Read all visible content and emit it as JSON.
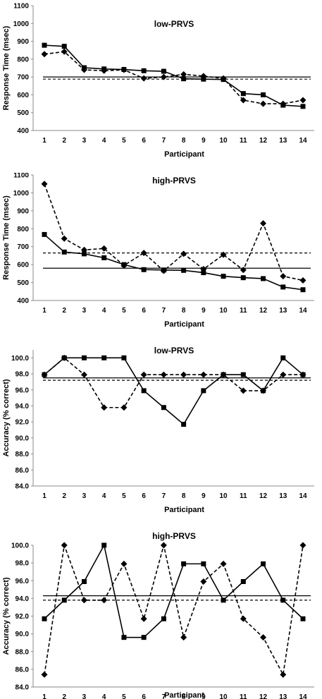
{
  "chart_data": [
    {
      "type": "line",
      "title": "low-PRVS",
      "xlabel": "Participant",
      "ylabel": "Response Time (msec)",
      "categories": [
        "1",
        "2",
        "3",
        "4",
        "5",
        "6",
        "7",
        "8",
        "9",
        "10",
        "11",
        "12",
        "13",
        "14"
      ],
      "ylim": [
        400,
        1100
      ],
      "yticks": [
        "400",
        "500",
        "600",
        "700",
        "800",
        "900",
        "1000",
        "1100"
      ],
      "grid": false,
      "series": [
        {
          "style": "solid",
          "marker": "square",
          "values": [
            878,
            872,
            752,
            745,
            742,
            735,
            732,
            690,
            688,
            686,
            607,
            600,
            542,
            535
          ]
        },
        {
          "style": "dashed",
          "marker": "diamond",
          "values": [
            828,
            842,
            740,
            735,
            740,
            692,
            700,
            715,
            705,
            692,
            570,
            550,
            550,
            570
          ]
        }
      ],
      "reference_lines": [
        {
          "style": "solid",
          "value": 700
        },
        {
          "style": "dashed",
          "value": 688
        }
      ]
    },
    {
      "type": "line",
      "title": "high-PRVS",
      "xlabel": "Participant",
      "ylabel": "Response Time (msec)",
      "categories": [
        "1",
        "2",
        "3",
        "4",
        "5",
        "6",
        "7",
        "8",
        "9",
        "10",
        "11",
        "12",
        "13",
        "14"
      ],
      "ylim": [
        400,
        1100
      ],
      "yticks": [
        "400",
        "500",
        "600",
        "700",
        "800",
        "900",
        "1000",
        "1100"
      ],
      "grid": false,
      "series": [
        {
          "style": "solid",
          "marker": "square",
          "values": [
            768,
            670,
            660,
            638,
            600,
            572,
            570,
            568,
            555,
            535,
            527,
            522,
            475,
            460
          ]
        },
        {
          "style": "dashed",
          "marker": "diamond",
          "values": [
            1050,
            745,
            682,
            690,
            595,
            665,
            565,
            660,
            575,
            655,
            570,
            830,
            535,
            512
          ]
        }
      ],
      "reference_lines": [
        {
          "style": "solid",
          "value": 580
        },
        {
          "style": "dashed",
          "value": 665
        }
      ]
    },
    {
      "type": "line",
      "title": "low-PRVS",
      "xlabel": "Participant",
      "ylabel": "Accuracy (% correct)",
      "categories": [
        "1",
        "2",
        "3",
        "4",
        "5",
        "6",
        "7",
        "8",
        "9",
        "10",
        "11",
        "12",
        "13",
        "14"
      ],
      "ylim": [
        84,
        101
      ],
      "yticks": [
        "84.0",
        "86.0",
        "88.0",
        "90.0",
        "92.0",
        "94.0",
        "96.0",
        "98.0",
        "100.0"
      ],
      "grid": false,
      "series": [
        {
          "style": "solid",
          "marker": "square",
          "values": [
            97.9,
            100,
            100,
            100,
            100,
            95.9,
            93.8,
            91.7,
            95.9,
            97.9,
            97.9,
            95.9,
            100,
            97.9
          ]
        },
        {
          "style": "dashed",
          "marker": "diamond",
          "values": [
            97.9,
            100,
            97.9,
            93.8,
            93.8,
            97.9,
            97.9,
            97.9,
            97.9,
            97.9,
            95.9,
            95.9,
            97.9,
            97.9
          ]
        }
      ],
      "reference_lines": [
        {
          "style": "solid",
          "value": 97.5
        },
        {
          "style": "dashed",
          "value": 97.2
        }
      ]
    },
    {
      "type": "line",
      "title": "high-PRVS",
      "xlabel": "Participant",
      "ylabel": "Accuracy (% correct)",
      "categories": [
        "1",
        "2",
        "3",
        "4",
        "5",
        "6",
        "7",
        "8",
        "9",
        "10",
        "11",
        "12",
        "13",
        "14"
      ],
      "ylim": [
        84,
        100
      ],
      "yticks": [
        "84.0",
        "86.0",
        "88.0",
        "90.0",
        "92.0",
        "94.0",
        "96.0",
        "98.0",
        "100.0"
      ],
      "grid": false,
      "series": [
        {
          "style": "solid",
          "marker": "square",
          "values": [
            91.7,
            93.8,
            95.9,
            100,
            89.6,
            89.6,
            91.7,
            97.9,
            97.9,
            93.8,
            95.9,
            97.9,
            93.8,
            91.7
          ]
        },
        {
          "style": "dashed",
          "marker": "diamond",
          "values": [
            85.4,
            100,
            93.8,
            93.8,
            97.9,
            91.7,
            100,
            89.6,
            95.9,
            97.9,
            91.7,
            89.6,
            85.4,
            100
          ]
        }
      ],
      "reference_lines": [
        {
          "style": "solid",
          "value": 94.3
        },
        {
          "style": "dashed",
          "value": 93.8
        }
      ]
    }
  ]
}
